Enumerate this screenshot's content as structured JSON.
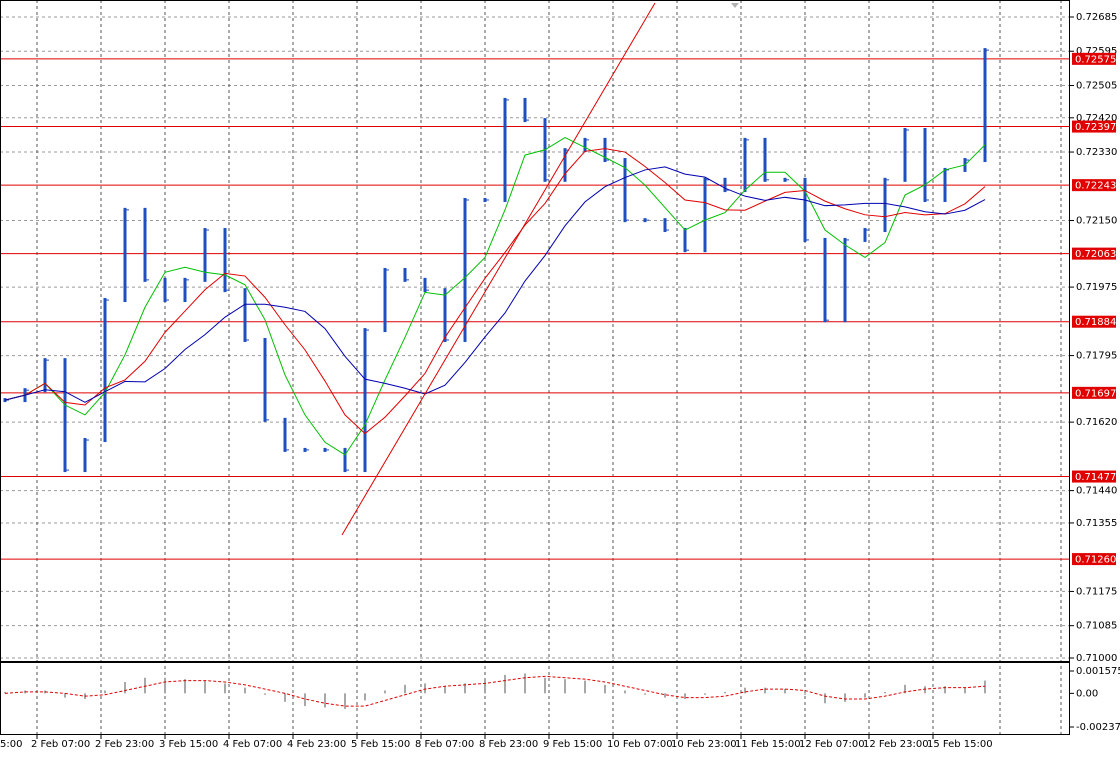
{
  "chart_data": {
    "type": "bar",
    "ylim": [
      0.71,
      0.72685
    ],
    "yticks": [
      0.72685,
      0.72595,
      0.72505,
      {
        "value": 0.7242,
        "label": "0.72420"
      },
      {
        "value": 0.7233,
        "label": "0.72330"
      },
      {
        "value": 0.7215,
        "label": "0.72150"
      },
      0.71975,
      0.71795,
      {
        "value": 0.7162,
        "label": "0.71620"
      },
      {
        "value": 0.7144,
        "label": "0.71440"
      },
      0.71355,
      0.71175,
      0.71085,
      {
        "value": 0.71,
        "label": "0.71000"
      }
    ],
    "x_labels": [
      "5:00",
      "2 Feb 07:00",
      "2 Feb 23:00",
      "3 Feb 15:00",
      "4 Feb 07:00",
      "4 Feb 23:00",
      "5 Feb 15:00",
      "8 Feb 07:00",
      "8 Feb 23:00",
      "9 Feb 15:00",
      "10 Feb 07:00",
      "10 Feb 23:00",
      "11 Feb 15:00",
      "12 Feb 07:00",
      "12 Feb 23:00",
      "15 Feb 15:00"
    ],
    "grid": true,
    "price": {
      "color": "#1f4fbf",
      "values": [
        0.71678,
        0.71704,
        0.71783,
        0.71494,
        0.71573,
        0.71941,
        0.72178,
        0.71994,
        0.71941,
        0.71994,
        0.72125,
        0.71967,
        0.71836,
        0.71626,
        0.71547,
        0.71547,
        0.71547,
        0.71494,
        0.71862,
        0.7202,
        0.71994,
        0.71967,
        0.71836,
        0.72204,
        0.72204,
        0.72467,
        0.72414,
        0.72257,
        0.72335,
        0.72362,
        0.72309,
        0.72151,
        0.72151,
        0.72125,
        0.72072,
        0.72257,
        0.7223,
        0.72362,
        0.72257,
        0.72257,
        0.72099,
        0.71888,
        0.72099,
        0.72125,
        0.72257,
        0.72388,
        0.72204,
        0.72283,
        0.72309,
        0.72598
      ]
    },
    "moving_averages": [
      {
        "color": "#00c000",
        "values": [
          0.71678,
          0.71691,
          0.71722,
          0.71665,
          0.71639,
          0.71698,
          0.71797,
          0.71922,
          0.72014,
          0.72027,
          0.72014,
          0.72007,
          0.71981,
          0.71889,
          0.71744,
          0.71639,
          0.71567,
          0.71534,
          0.71613,
          0.71731,
          0.71843,
          0.71961,
          0.71954,
          0.72,
          0.72053,
          0.72178,
          0.72322,
          0.72336,
          0.72368,
          0.72342,
          0.72316,
          0.72289,
          0.72243,
          0.72184,
          0.72125,
          0.72151,
          0.72171,
          0.7223,
          0.72277,
          0.72277,
          0.72227,
          0.72125,
          0.72086,
          0.72053,
          0.72092,
          0.72217,
          0.72244,
          0.72283,
          0.72296,
          0.72349
        ]
      },
      {
        "color": "#e00000",
        "values": [
          0.71678,
          0.71691,
          0.71722,
          0.71672,
          0.71665,
          0.7171,
          0.71731,
          0.7178,
          0.71856,
          0.71912,
          0.71968,
          0.72011,
          0.72004,
          0.71948,
          0.71876,
          0.7181,
          0.71728,
          0.71639,
          0.7159,
          0.71633,
          0.71689,
          0.71748,
          0.71843,
          0.71921,
          0.71998,
          0.72066,
          0.72138,
          0.72195,
          0.72273,
          0.72332,
          0.72339,
          0.7233,
          0.72292,
          0.7225,
          0.72204,
          0.72197,
          0.72178,
          0.72177,
          0.72201,
          0.72224,
          0.72229,
          0.72201,
          0.72181,
          0.72165,
          0.7216,
          0.72171,
          0.72165,
          0.72168,
          0.72194,
          0.72239
        ]
      },
      {
        "color": "#0000b0",
        "values": [
          0.71678,
          0.71691,
          0.71705,
          0.717,
          0.71672,
          0.717,
          0.71727,
          0.71726,
          0.71761,
          0.71811,
          0.7185,
          0.71896,
          0.7193,
          0.7193,
          0.71922,
          0.71911,
          0.71866,
          0.71793,
          0.71733,
          0.71722,
          0.71709,
          0.71694,
          0.71717,
          0.71777,
          0.71844,
          0.71907,
          0.71991,
          0.72058,
          0.72136,
          0.72199,
          0.72239,
          0.72263,
          0.72283,
          0.72291,
          0.72272,
          0.72264,
          0.72235,
          0.72214,
          0.72203,
          0.72211,
          0.72204,
          0.72189,
          0.72191,
          0.72195,
          0.72195,
          0.72186,
          0.72173,
          0.72167,
          0.72177,
          0.72205
        ]
      }
    ],
    "levels": {
      "color": "#e00000",
      "values": [
        0.72575,
        0.72397,
        0.72243,
        0.72063,
        0.71884,
        0.71697,
        0.71477,
        {
          "value": 0.7126,
          "label": "0.71260"
        }
      ]
    },
    "oscillator": {
      "ylim": [
        -0.002374,
        0.001575
      ],
      "yticks": [
        0.001575,
        {
          "value": 0,
          "label": "0.00"
        },
        -0.002374
      ],
      "histogram": {
        "color": "#a8a8a8",
        "values": [
          0.0001,
          0.0002,
          0.0002,
          -0.0003,
          -0.0004,
          0.0002,
          0.0008,
          0.0011,
          0.0011,
          0.001,
          0.0009,
          0.0007,
          0.0004,
          -0.0001,
          -0.0006,
          -0.0009,
          -0.001,
          -0.0011,
          -0.0005,
          0.0002,
          0.0006,
          0.0007,
          0.0005,
          0.0007,
          0.0009,
          0.0013,
          0.0014,
          0.0011,
          0.001,
          0.0009,
          0.0006,
          0.0002,
          -0.0001,
          -0.0003,
          -0.0004,
          -0.0001,
          0.0001,
          0.0004,
          0.0004,
          0.0003,
          -0.0001,
          -0.0007,
          -0.0006,
          -0.0003,
          0.0001,
          0.0006,
          0.0005,
          0.0005,
          0.0004,
          0.0009
        ]
      },
      "signal": {
        "color": "#e00000",
        "values": [
          0,
          0.0001,
          0.0001,
          0,
          -0.0002,
          -0.0001,
          0.0002,
          0.0005,
          0.0008,
          0.0009,
          0.0009,
          0.0008,
          0.0006,
          0.0003,
          0,
          -0.0004,
          -0.0007,
          -0.0009,
          -0.0009,
          -0.0005,
          -0.0001,
          0.0003,
          0.0005,
          0.0006,
          0.0007,
          0.0009,
          0.0011,
          0.0012,
          0.0011,
          0.001,
          0.0008,
          0.0005,
          0.0002,
          -0.0001,
          -0.0003,
          -0.0003,
          -0.0002,
          0.0001,
          0.0003,
          0.0003,
          0.0002,
          -0.0002,
          -0.0004,
          -0.0004,
          -0.0002,
          0.0001,
          0.0003,
          0.0004,
          0.0004,
          0.0005
        ]
      }
    }
  }
}
